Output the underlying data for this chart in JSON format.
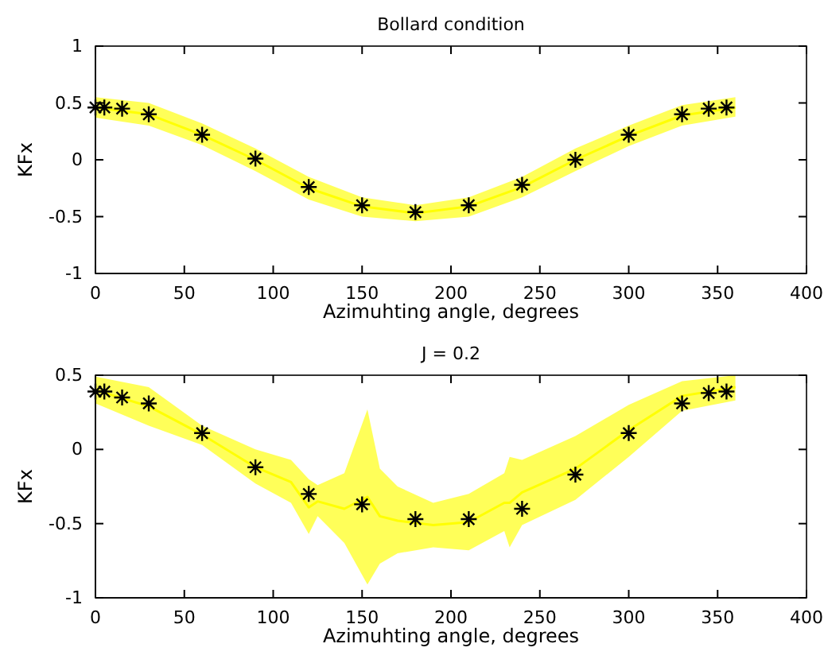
{
  "chart_data": [
    {
      "type": "scatter",
      "title": "Bollard condition",
      "xlabel": "Azimuhting angle, degrees",
      "ylabel": "KFx",
      "xlim": [
        0,
        400
      ],
      "xticks": [
        0,
        50,
        100,
        150,
        200,
        250,
        300,
        350,
        400
      ],
      "ylim": [
        -1,
        1
      ],
      "yticks": [
        -1,
        -0.5,
        0,
        0.5,
        1
      ],
      "grid": false,
      "series": [
        {
          "type": "line",
          "marker": "none",
          "color": "#ffff00",
          "x": [
            0,
            30,
            60,
            90,
            120,
            150,
            180,
            210,
            240,
            270,
            300,
            330,
            360
          ],
          "values": [
            0.46,
            0.4,
            0.22,
            0,
            -0.25,
            -0.41,
            -0.47,
            -0.41,
            -0.24,
            0,
            0.21,
            0.39,
            0.46
          ],
          "lower": [
            0.37,
            0.3,
            0.13,
            -0.1,
            -0.35,
            -0.5,
            -0.54,
            -0.5,
            -0.33,
            -0.1,
            0.12,
            0.3,
            0.38
          ],
          "upper": [
            0.55,
            0.5,
            0.32,
            0.1,
            -0.15,
            -0.33,
            -0.4,
            -0.33,
            -0.15,
            0.1,
            0.3,
            0.48,
            0.55
          ]
        },
        {
          "marker": "cross",
          "color": "#000000",
          "x": [
            0,
            5,
            15,
            30,
            60,
            90,
            120,
            150,
            180,
            210,
            240,
            270,
            300,
            330,
            345,
            355
          ],
          "values": [
            0.46,
            0.46,
            0.45,
            0.4,
            0.22,
            0.01,
            -0.24,
            -0.4,
            -0.46,
            -0.4,
            -0.22,
            0,
            0.22,
            0.4,
            0.45,
            0.46
          ]
        }
      ]
    },
    {
      "type": "scatter",
      "title": "J = 0.2",
      "xlabel": "Azimuhting angle, degrees",
      "ylabel": "KFx",
      "xlim": [
        0,
        400
      ],
      "xticks": [
        0,
        50,
        100,
        150,
        200,
        250,
        300,
        350,
        400
      ],
      "ylim": [
        -1,
        0.5
      ],
      "yticks": [
        -1,
        -0.5,
        0,
        0.5
      ],
      "grid": false,
      "series": [
        {
          "type": "line",
          "marker": "none",
          "color": "#ffff00",
          "x": [
            0,
            30,
            60,
            90,
            110,
            120,
            125,
            140,
            153,
            160,
            170,
            190,
            210,
            230,
            233,
            240,
            270,
            300,
            330,
            360
          ],
          "values": [
            0.4,
            0.29,
            0.1,
            -0.12,
            -0.22,
            -0.39,
            -0.35,
            -0.4,
            -0.32,
            -0.45,
            -0.48,
            -0.51,
            -0.49,
            -0.36,
            -0.36,
            -0.29,
            -0.13,
            0.13,
            0.36,
            0.42
          ],
          "lower": [
            0.31,
            0.16,
            0.03,
            -0.23,
            -0.36,
            -0.57,
            -0.45,
            -0.63,
            -0.91,
            -0.77,
            -0.7,
            -0.66,
            -0.68,
            -0.55,
            -0.66,
            -0.51,
            -0.34,
            -0.05,
            0.26,
            0.33
          ],
          "upper": [
            0.49,
            0.42,
            0.16,
            0,
            -0.07,
            -0.2,
            -0.24,
            -0.16,
            0.27,
            -0.13,
            -0.25,
            -0.36,
            -0.3,
            -0.16,
            -0.05,
            -0.07,
            0.09,
            0.3,
            0.46,
            0.5
          ]
        },
        {
          "marker": "cross",
          "color": "#000000",
          "x": [
            0,
            5,
            15,
            30,
            60,
            90,
            120,
            150,
            180,
            210,
            240,
            270,
            300,
            330,
            345,
            355
          ],
          "values": [
            0.39,
            0.39,
            0.35,
            0.31,
            0.11,
            -0.12,
            -0.3,
            -0.37,
            -0.47,
            -0.47,
            -0.4,
            -0.17,
            0.11,
            0.31,
            0.38,
            0.39
          ]
        }
      ]
    }
  ]
}
